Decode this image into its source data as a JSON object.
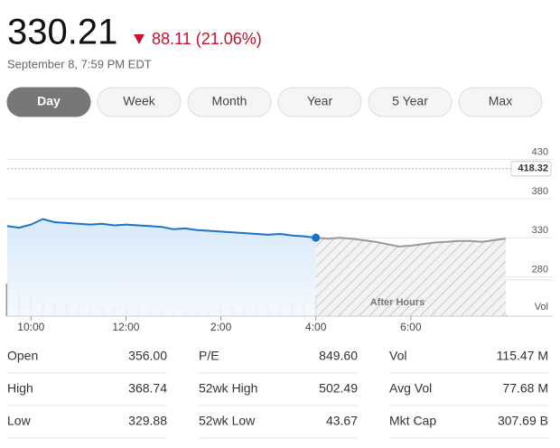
{
  "quote": {
    "price": "330.21",
    "change": "88.11 (21.06%)",
    "timestamp": "September 8, 7:59 PM EDT"
  },
  "ranges": [
    "Day",
    "Week",
    "Month",
    "Year",
    "5 Year",
    "Max"
  ],
  "chart_data": {
    "type": "line",
    "x": [
      9.5,
      9.75,
      10,
      10.25,
      10.5,
      10.75,
      11,
      11.25,
      11.5,
      11.75,
      12,
      12.25,
      12.5,
      12.75,
      13,
      13.25,
      13.5,
      13.75,
      14,
      14.25,
      14.5,
      14.75,
      15,
      15.25,
      15.5,
      15.75,
      16,
      16.25,
      16.5,
      16.75,
      17,
      17.25,
      17.5,
      17.75,
      18,
      18.25,
      18.5,
      18.75,
      19,
      19.25,
      19.5,
      19.75,
      20
    ],
    "xlim": [
      9.5,
      20
    ],
    "xticks": [
      {
        "value": 10,
        "label": "10:00"
      },
      {
        "value": 12,
        "label": "12:00"
      },
      {
        "value": 14,
        "label": "2:00"
      },
      {
        "value": 16,
        "label": "4:00"
      },
      {
        "value": 18,
        "label": "6:00"
      }
    ],
    "ylim": [
      230,
      440
    ],
    "yticks": [
      280,
      330,
      380,
      430
    ],
    "previous_close": 418.32,
    "series": [
      {
        "color": "#1a73c8",
        "values": [
          345,
          343,
          347,
          354,
          350,
          349,
          348,
          347,
          348,
          346,
          347,
          346,
          345,
          344,
          341,
          342,
          340,
          339,
          338,
          337,
          336,
          335,
          334,
          335,
          333,
          332,
          330.21,
          null,
          null,
          null,
          null,
          null,
          null,
          null,
          null,
          null,
          null,
          null,
          null,
          null,
          null,
          null,
          null
        ]
      },
      {
        "color": "#999999",
        "values": [
          null,
          null,
          null,
          null,
          null,
          null,
          null,
          null,
          null,
          null,
          null,
          null,
          null,
          null,
          null,
          null,
          null,
          null,
          null,
          null,
          null,
          null,
          null,
          null,
          null,
          null,
          330.21,
          329,
          330,
          329,
          327,
          325,
          322,
          319,
          320,
          322,
          324,
          325,
          326,
          326,
          325,
          327,
          329
        ]
      }
    ],
    "volume": {
      "label": "Vol",
      "values": [
        95,
        70,
        55,
        45,
        40,
        38,
        35,
        30,
        28,
        26,
        30,
        25,
        24,
        22,
        20,
        22,
        21,
        24,
        26,
        25,
        28,
        30,
        32,
        35,
        40,
        45,
        60,
        6,
        4,
        3,
        3,
        2,
        2,
        3,
        2,
        2,
        18,
        2,
        2,
        3,
        2,
        2,
        3
      ]
    },
    "annotation": "After Hours"
  },
  "stats": [
    [
      {
        "label": "Open",
        "value": "356.00"
      },
      {
        "label": "P/E",
        "value": "849.60"
      },
      {
        "label": "Vol",
        "value": "115.47 M"
      }
    ],
    [
      {
        "label": "High",
        "value": "368.74"
      },
      {
        "label": "52wk High",
        "value": "502.49"
      },
      {
        "label": "Avg Vol",
        "value": "77.68 M"
      }
    ],
    [
      {
        "label": "Low",
        "value": "329.88"
      },
      {
        "label": "52wk Low",
        "value": "43.67"
      },
      {
        "label": "Mkt Cap",
        "value": "307.69 B"
      }
    ]
  ]
}
